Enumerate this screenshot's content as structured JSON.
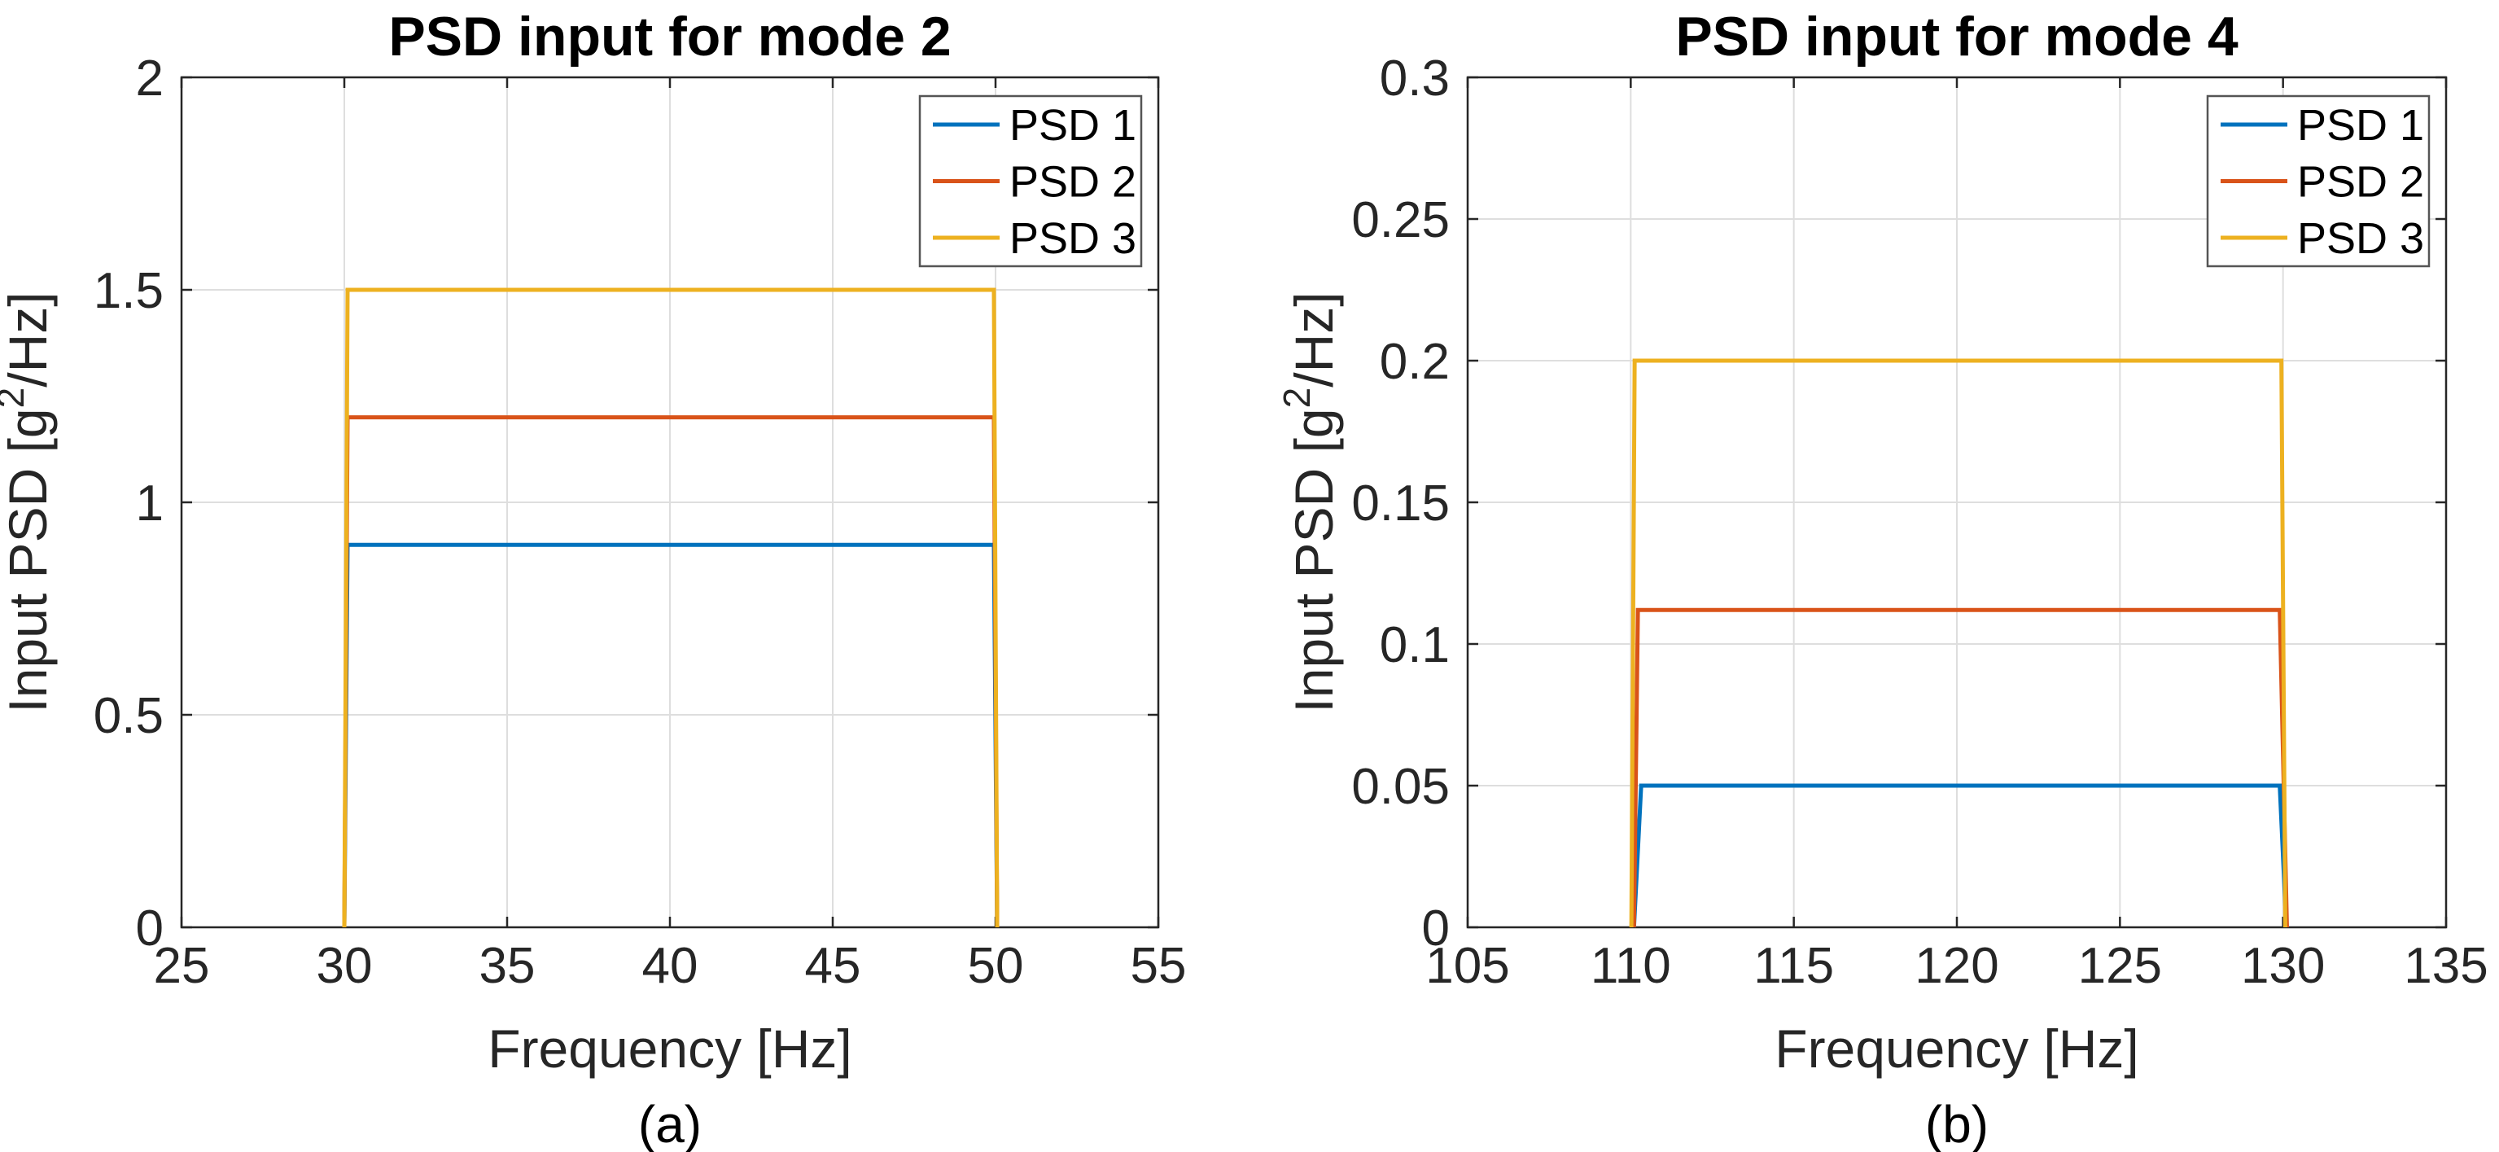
{
  "figure": {
    "background": "#ffffff",
    "description": "Two side-by-side PSD input spectra plots"
  },
  "colors": {
    "psd1": "#0072BD",
    "psd2": "#D95319",
    "psd3": "#EDB120",
    "axis": "#262626",
    "grid": "#dedede",
    "text": "#262626",
    "title": "#000000",
    "legend_border": "#555555",
    "legend_fill": "#ffffff"
  },
  "chart_data": [
    {
      "type": "line",
      "title": "PSD input for mode 2",
      "xlabel": "Frequency [Hz]",
      "ylabel": "Input PSD [g^2/Hz]",
      "ylabel_parts": [
        {
          "t": "Input PSD  [g"
        },
        {
          "t": "2",
          "sup": true
        },
        {
          "t": "/Hz]"
        }
      ],
      "caption": "(a)",
      "xlim": [
        25,
        55
      ],
      "ylim": [
        0,
        2
      ],
      "xticks": [
        25,
        30,
        35,
        40,
        45,
        50,
        55
      ],
      "xtick_labels": [
        "25",
        "30",
        "35",
        "40",
        "45",
        "50",
        "55"
      ],
      "yticks": [
        0,
        0.5,
        1,
        1.5,
        2
      ],
      "ytick_labels": [
        "0",
        "0.5",
        "1",
        "1.5",
        "2"
      ],
      "grid": true,
      "legend": {
        "position": "northeast",
        "entries": [
          "PSD 1",
          "PSD 2",
          "PSD 3"
        ]
      },
      "series": [
        {
          "name": "PSD 1",
          "color_key": "psd1",
          "band_hz": [
            30,
            50
          ],
          "level": 0.9,
          "points": [
            [
              30,
              0
            ],
            [
              30.1,
              0.9
            ],
            [
              49.95,
              0.9
            ],
            [
              50.05,
              0
            ]
          ]
        },
        {
          "name": "PSD 2",
          "color_key": "psd2",
          "band_hz": [
            30,
            50
          ],
          "level": 1.2,
          "points": [
            [
              30,
              0
            ],
            [
              30.1,
              1.2
            ],
            [
              49.95,
              1.2
            ],
            [
              50.05,
              0
            ]
          ]
        },
        {
          "name": "PSD 3",
          "color_key": "psd3",
          "band_hz": [
            30,
            50
          ],
          "level": 1.5,
          "points": [
            [
              30,
              0
            ],
            [
              30.1,
              1.5
            ],
            [
              49.95,
              1.5
            ],
            [
              50.05,
              0
            ]
          ]
        }
      ]
    },
    {
      "type": "line",
      "title": "PSD input for mode 4",
      "xlabel": "Frequency [Hz]",
      "ylabel": "Input PSD [g^2/Hz]",
      "ylabel_parts": [
        {
          "t": "Input PSD  [g"
        },
        {
          "t": "2",
          "sup": true
        },
        {
          "t": "/Hz]"
        }
      ],
      "caption": "(b)",
      "xlim": [
        105,
        135
      ],
      "ylim": [
        0,
        0.3
      ],
      "xticks": [
        105,
        110,
        115,
        120,
        125,
        130,
        135
      ],
      "xtick_labels": [
        "105",
        "110",
        "115",
        "120",
        "125",
        "130",
        "135"
      ],
      "yticks": [
        0,
        0.05,
        0.1,
        0.15,
        0.2,
        0.25,
        0.3
      ],
      "ytick_labels": [
        "0",
        "0.05",
        "0.1",
        "0.15",
        "0.2",
        "0.25",
        "0.3"
      ],
      "grid": true,
      "legend": {
        "position": "northeast",
        "entries": [
          "PSD 1",
          "PSD 2",
          "PSD 3"
        ]
      },
      "series": [
        {
          "name": "PSD 1",
          "color_key": "psd1",
          "band_hz": [
            110,
            130
          ],
          "level": 0.05,
          "points": [
            [
              110.1,
              0
            ],
            [
              110.32,
              0.05
            ],
            [
              129.9,
              0.05
            ],
            [
              130.1,
              0
            ]
          ]
        },
        {
          "name": "PSD 2",
          "color_key": "psd2",
          "band_hz": [
            110,
            130
          ],
          "level": 0.112,
          "points": [
            [
              110.1,
              0
            ],
            [
              110.22,
              0.112
            ],
            [
              129.9,
              0.112
            ],
            [
              130.12,
              0
            ]
          ]
        },
        {
          "name": "PSD 3",
          "color_key": "psd3",
          "band_hz": [
            110,
            130
          ],
          "level": 0.2,
          "points": [
            [
              110.02,
              0
            ],
            [
              110.12,
              0.2
            ],
            [
              129.95,
              0.2
            ],
            [
              130.07,
              0
            ]
          ]
        }
      ]
    }
  ]
}
